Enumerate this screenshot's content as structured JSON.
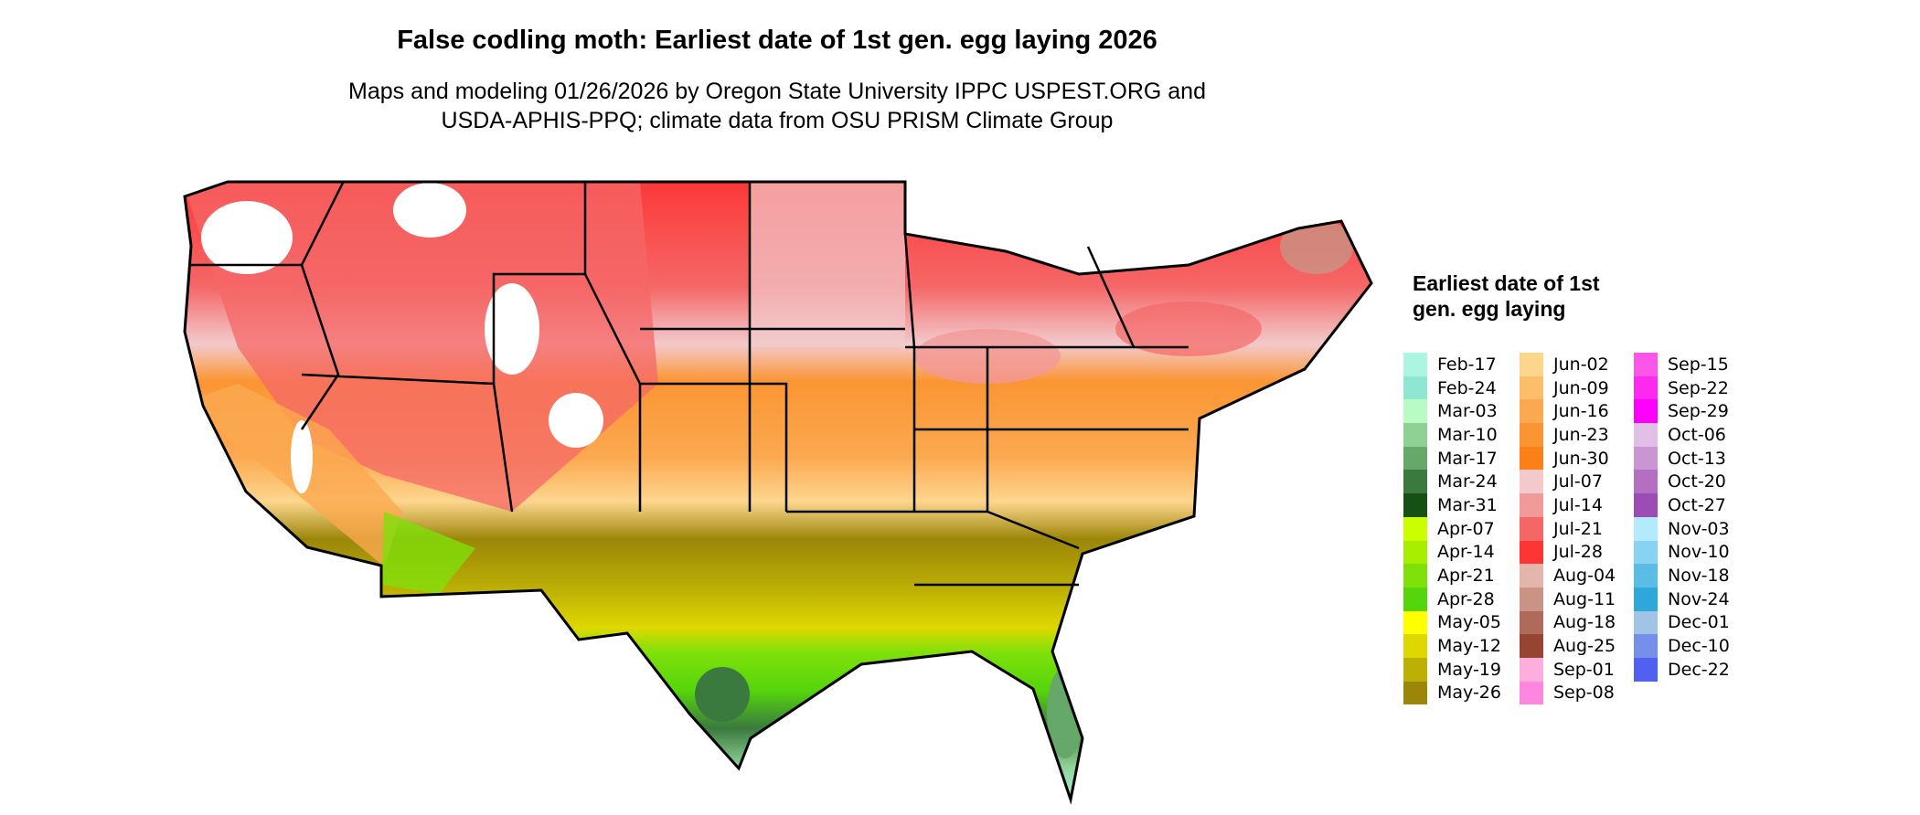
{
  "title": "False codling moth: Earliest date of 1st gen. egg laying 2026",
  "subtitle_line1": "Maps and modeling 01/26/2026 by Oregon State University IPPC USPEST.ORG and",
  "subtitle_line2": "USDA-APHIS-PPQ; climate data from OSU PRISM Climate Group",
  "chart_data": {
    "type": "heatmap",
    "title": "False codling moth: Earliest date of 1st gen. egg laying 2026",
    "region": "contiguous United States",
    "legend_title": "Earliest date of 1st gen. egg laying",
    "legend_placement": "right",
    "legend": [
      {
        "label": "Feb-17",
        "color": "#abf5e1"
      },
      {
        "label": "Feb-24",
        "color": "#8fe6d3"
      },
      {
        "label": "Mar-03",
        "color": "#b8fbc5"
      },
      {
        "label": "Mar-10",
        "color": "#8fd195"
      },
      {
        "label": "Mar-17",
        "color": "#66a86a"
      },
      {
        "label": "Mar-24",
        "color": "#3b7a3e"
      },
      {
        "label": "Mar-31",
        "color": "#175015"
      },
      {
        "label": "Apr-07",
        "color": "#cbff00"
      },
      {
        "label": "Apr-14",
        "color": "#a8ee00"
      },
      {
        "label": "Apr-21",
        "color": "#7fe00a"
      },
      {
        "label": "Apr-28",
        "color": "#55d50b"
      },
      {
        "label": "May-05",
        "color": "#ffff00"
      },
      {
        "label": "May-12",
        "color": "#dfd800"
      },
      {
        "label": "May-19",
        "color": "#bdb005"
      },
      {
        "label": "May-26",
        "color": "#9b8608"
      },
      {
        "label": "Jun-02",
        "color": "#fdd68e"
      },
      {
        "label": "Jun-09",
        "color": "#fdbe6c"
      },
      {
        "label": "Jun-16",
        "color": "#fba950"
      },
      {
        "label": "Jun-23",
        "color": "#fb9533"
      },
      {
        "label": "Jun-30",
        "color": "#fb8017"
      },
      {
        "label": "Jul-07",
        "color": "#f2cacc"
      },
      {
        "label": "Jul-14",
        "color": "#f29999"
      },
      {
        "label": "Jul-21",
        "color": "#f56767"
      },
      {
        "label": "Jul-28",
        "color": "#fd3535"
      },
      {
        "label": "Aug-04",
        "color": "#e4b6ab"
      },
      {
        "label": "Aug-11",
        "color": "#c99386"
      },
      {
        "label": "Aug-18",
        "color": "#b06a5a"
      },
      {
        "label": "Aug-25",
        "color": "#974533"
      },
      {
        "label": "Sep-01",
        "color": "#fdaedd"
      },
      {
        "label": "Sep-08",
        "color": "#fd86e1"
      },
      {
        "label": "Sep-15",
        "color": "#fd55e9"
      },
      {
        "label": "Sep-22",
        "color": "#fd29ef"
      },
      {
        "label": "Sep-29",
        "color": "#fd00fd"
      },
      {
        "label": "Oct-06",
        "color": "#e1bfe6"
      },
      {
        "label": "Oct-13",
        "color": "#c995d3"
      },
      {
        "label": "Oct-20",
        "color": "#b46fc3"
      },
      {
        "label": "Oct-27",
        "color": "#9d4bb5"
      },
      {
        "label": "Nov-03",
        "color": "#b3ebfd"
      },
      {
        "label": "Nov-10",
        "color": "#87d3f1"
      },
      {
        "label": "Nov-18",
        "color": "#5bbce6"
      },
      {
        "label": "Nov-24",
        "color": "#2ea7db"
      },
      {
        "label": "Dec-01",
        "color": "#a0c3e6"
      },
      {
        "label": "Dec-10",
        "color": "#758fea"
      },
      {
        "label": "Dec-22",
        "color": "#5060f0"
      }
    ]
  }
}
